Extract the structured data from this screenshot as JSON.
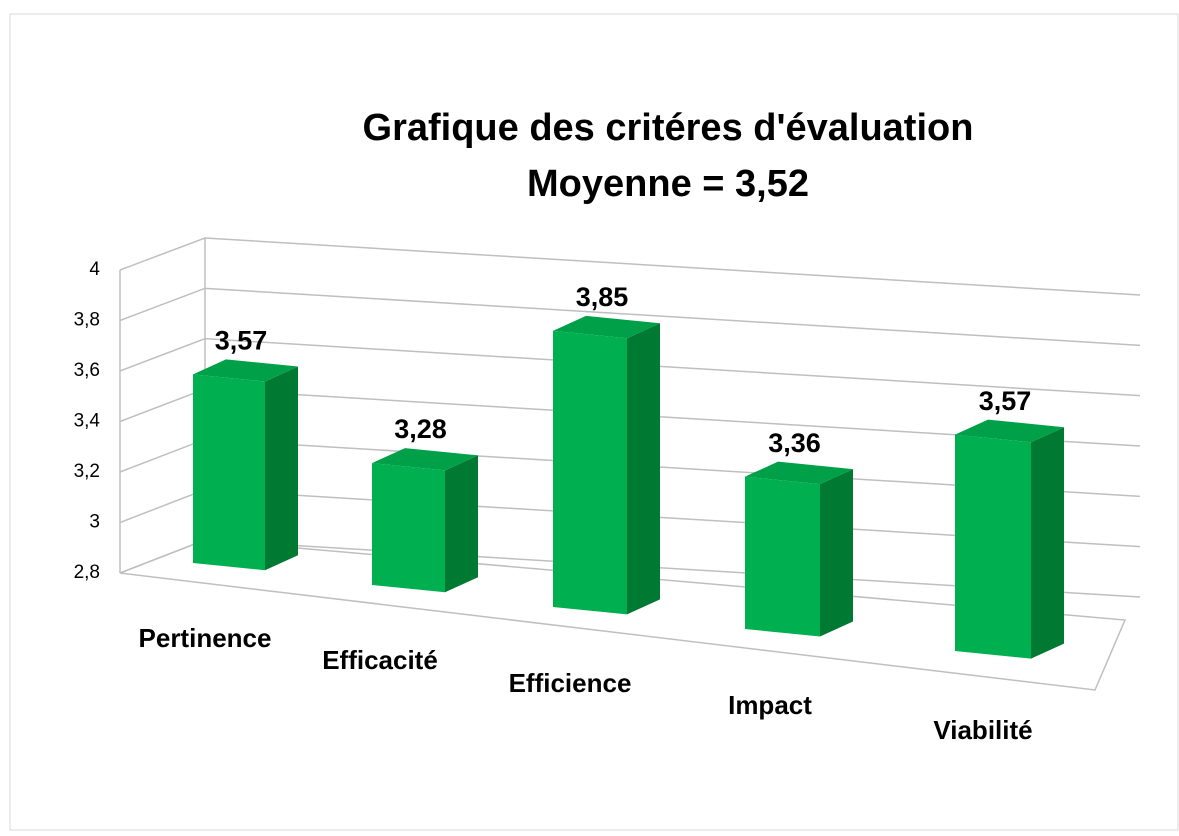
{
  "chart_data": {
    "type": "bar3d",
    "title": "Grafique des critéres d'évaluation",
    "subtitle": "Moyenne = 3,52",
    "categories": [
      "Pertinence",
      "Efficacité",
      "Efficience",
      "Impact",
      "Viabilité"
    ],
    "values": [
      3.57,
      3.28,
      3.85,
      3.36,
      3.57
    ],
    "value_labels": [
      "3,57",
      "3,28",
      "3,85",
      "3,36",
      "3,57"
    ],
    "color": "#00b050",
    "ylim": [
      2.8,
      4
    ],
    "yticks": [
      {
        "value": 2.8,
        "label": "2,8"
      },
      3,
      {
        "value": 3.2,
        "label": "3,2"
      },
      {
        "value": 3.4,
        "label": "3,4"
      },
      {
        "value": 3.6,
        "label": "3,6"
      },
      {
        "value": 3.8,
        "label": "3,8"
      },
      4
    ],
    "grid": true
  }
}
